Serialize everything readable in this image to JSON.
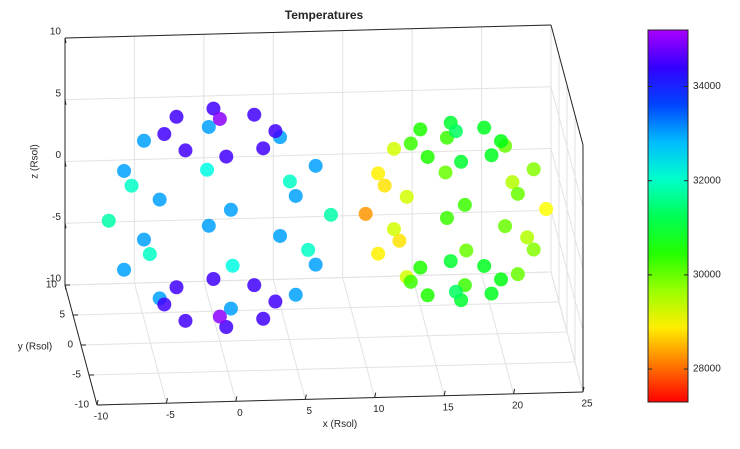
{
  "chart_data": {
    "type": "scatter3d",
    "title": "Temperatures",
    "xlabel": "x (Rsol)",
    "ylabel": "y (Rsol)",
    "zlabel": "z (Rsol)",
    "xlim": [
      -10,
      25
    ],
    "ylim": [
      -10,
      10
    ],
    "zlim": [
      -10,
      10
    ],
    "xticks": [
      -10,
      -5,
      0,
      5,
      10,
      15,
      20,
      25
    ],
    "yticks": [
      -10,
      -5,
      0,
      5,
      10
    ],
    "zticks": [
      -10,
      -5,
      0,
      5,
      10
    ],
    "clim": [
      27300,
      35200
    ],
    "cticks": [
      28000,
      30000,
      32000,
      34000
    ],
    "grid": true,
    "colorbar": true,
    "series": [
      {
        "x": [
          8,
          5.7,
          0,
          -5.7,
          -8,
          -5.7,
          0,
          5.7,
          6.9,
          4.9,
          0,
          -4.9,
          -6.9,
          -4.9,
          0,
          4.9,
          6.9,
          4.9,
          0,
          -4.9,
          -6.9,
          -4.9,
          0,
          4.9,
          4,
          2.8,
          0,
          -2.8,
          -4,
          -2.8,
          0,
          2.8,
          4,
          2.8,
          0,
          -2.8,
          -4,
          -2.8,
          0,
          2.8,
          0,
          0
        ],
        "y": [
          0,
          5.7,
          8,
          5.7,
          0,
          -5.7,
          -8,
          -5.7,
          0,
          4.9,
          6.9,
          4.9,
          0,
          -4.9,
          -6.9,
          -4.9,
          0,
          4.9,
          6.9,
          4.9,
          0,
          -4.9,
          -6.9,
          -4.9,
          0,
          2.8,
          4,
          2.8,
          0,
          -2.8,
          -4,
          -2.8,
          0,
          2.8,
          4,
          2.8,
          0,
          -2.8,
          -4,
          -2.8,
          0,
          0
        ],
        "z": [
          0,
          0,
          0,
          0,
          0,
          0,
          0,
          0,
          4,
          4,
          4,
          4,
          4,
          4,
          4,
          4,
          -4,
          -4,
          -4,
          -4,
          -4,
          -4,
          -4,
          -4,
          6.9,
          6.9,
          6.9,
          6.9,
          6.9,
          6.9,
          6.9,
          6.9,
          -6.9,
          -6.9,
          -6.9,
          -6.9,
          -6.9,
          -6.9,
          -6.9,
          -6.9,
          8,
          -8
        ],
        "values": [
          31800,
          32000,
          32200,
          32000,
          31800,
          32000,
          32200,
          32000,
          33000,
          33000,
          33000,
          33000,
          33000,
          33000,
          33000,
          33000,
          33000,
          33000,
          33000,
          33000,
          33000,
          33000,
          33000,
          33000,
          34500,
          34500,
          34500,
          34500,
          34500,
          34500,
          34500,
          34500,
          34500,
          34500,
          34500,
          34500,
          34500,
          34500,
          34500,
          34500,
          35000,
          35000
        ]
      },
      {
        "x": [
          23.5,
          21.6,
          17,
          12.4,
          10.5,
          12.4,
          17,
          21.6,
          22.6,
          21,
          17,
          13,
          11.4,
          13,
          17,
          21,
          22.6,
          21,
          17,
          13,
          11.4,
          13,
          17,
          21,
          20.25,
          19.3,
          17,
          14.7,
          13.75,
          14.7,
          17,
          19.3,
          20.25,
          19.3,
          17,
          14.7,
          13.75,
          14.7,
          17,
          19.3,
          17,
          17
        ],
        "y": [
          0,
          4.6,
          6.5,
          4.6,
          0,
          -4.6,
          -6.5,
          -4.6,
          0,
          4,
          5.6,
          4,
          0,
          -4,
          -5.6,
          -4,
          0,
          4,
          5.6,
          4,
          0,
          -4,
          -5.6,
          -4,
          0,
          2.3,
          3.25,
          2.3,
          0,
          -2.3,
          -3.25,
          -2.3,
          0,
          2.3,
          3.25,
          2.3,
          0,
          -2.3,
          -3.25,
          -2.3,
          0,
          0
        ],
        "z": [
          0,
          0,
          0,
          0,
          0,
          0,
          0,
          0,
          3.25,
          3.25,
          3.25,
          3.25,
          3.25,
          3.25,
          3.25,
          3.25,
          -3.25,
          -3.25,
          -3.25,
          -3.25,
          -3.25,
          -3.25,
          -3.25,
          -3.25,
          5.6,
          5.6,
          5.6,
          5.6,
          5.6,
          5.6,
          5.6,
          5.6,
          -5.6,
          -5.6,
          -5.6,
          -5.6,
          -5.6,
          -5.6,
          -5.6,
          -5.6,
          6.5,
          -6.5
        ],
        "values": [
          29000,
          29500,
          30000,
          28800,
          28300,
          28800,
          30000,
          29500,
          29800,
          30000,
          30300,
          29300,
          28900,
          29300,
          30300,
          30000,
          29800,
          30000,
          30300,
          29300,
          28900,
          29300,
          30300,
          30000,
          30800,
          30900,
          31000,
          30500,
          30300,
          30500,
          31000,
          30900,
          30800,
          30900,
          31000,
          30500,
          30300,
          30500,
          31000,
          30900,
          31300,
          31300
        ]
      }
    ]
  }
}
